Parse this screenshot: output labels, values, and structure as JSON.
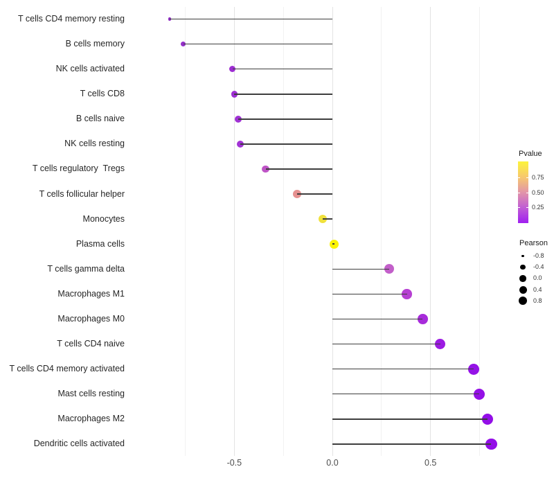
{
  "chart_data": {
    "type": "scatter",
    "subtype": "lollipop",
    "title": "",
    "xlabel": "",
    "ylabel": "",
    "xlim": [
      -0.92,
      0.89
    ],
    "grid": true,
    "x_ticks": [
      {
        "value": -0.5,
        "label": "-0.5"
      },
      {
        "value": 0.0,
        "label": "0.0"
      },
      {
        "value": 0.5,
        "label": "0.5"
      }
    ],
    "x_minor_gridlines": [
      -0.75,
      -0.25,
      0.25,
      0.75
    ],
    "points": [
      {
        "label": "T cells CD4 memory resting",
        "pearson": -0.83,
        "color": "#8E2BC4"
      },
      {
        "label": "B cells memory",
        "pearson": -0.76,
        "color": "#9530CA"
      },
      {
        "label": "NK cells activated",
        "pearson": -0.51,
        "color": "#9C2DD1"
      },
      {
        "label": "T cells CD8",
        "pearson": -0.5,
        "color": "#9D2ED2"
      },
      {
        "label": "B cells naive",
        "pearson": -0.48,
        "color": "#A032D4"
      },
      {
        "label": "NK cells resting",
        "pearson": -0.47,
        "color": "#A233D5"
      },
      {
        "label": "T cells regulatory  Tregs",
        "pearson": -0.34,
        "color": "#BE54C6"
      },
      {
        "label": "T cells follicular helper",
        "pearson": -0.18,
        "color": "#E69190"
      },
      {
        "label": "Monocytes",
        "pearson": -0.05,
        "color": "#F0E13C"
      },
      {
        "label": "Plasma cells",
        "pearson": 0.01,
        "color": "#FBF303"
      },
      {
        "label": "T cells gamma delta",
        "pearson": 0.29,
        "color": "#C25FC9"
      },
      {
        "label": "Macrophages M1",
        "pearson": 0.38,
        "color": "#B63FD2"
      },
      {
        "label": "Macrophages M0",
        "pearson": 0.46,
        "color": "#A72BDA"
      },
      {
        "label": "T cells CD4 naive",
        "pearson": 0.55,
        "color": "#9C1BE2"
      },
      {
        "label": "T cells CD4 memory activated",
        "pearson": 0.72,
        "color": "#9412E6"
      },
      {
        "label": "Mast cells resting",
        "pearson": 0.75,
        "color": "#9410E6"
      },
      {
        "label": "Macrophages M2",
        "pearson": 0.79,
        "color": "#930EE7"
      },
      {
        "label": "Dendritic cells activated",
        "pearson": 0.81,
        "color": "#930EE7"
      }
    ],
    "legend": {
      "position": "right",
      "color_legend": {
        "title": "Pvalue",
        "tick_labels": [
          "0.75",
          "0.50",
          "0.25"
        ],
        "gradient_stops": [
          "#FCF43B",
          "#F7C96E",
          "#E295A8",
          "#C05DD4",
          "#A01FF0"
        ]
      },
      "size_legend": {
        "title": "Pearson",
        "entries": [
          {
            "label": "-0.8",
            "r": 1.8
          },
          {
            "label": "-0.4",
            "r": 3.6
          },
          {
            "label": "0.0",
            "r": 4.7
          },
          {
            "label": "0.4",
            "r": 5.5
          },
          {
            "label": "0.8",
            "r": 6.2
          }
        ]
      }
    }
  }
}
